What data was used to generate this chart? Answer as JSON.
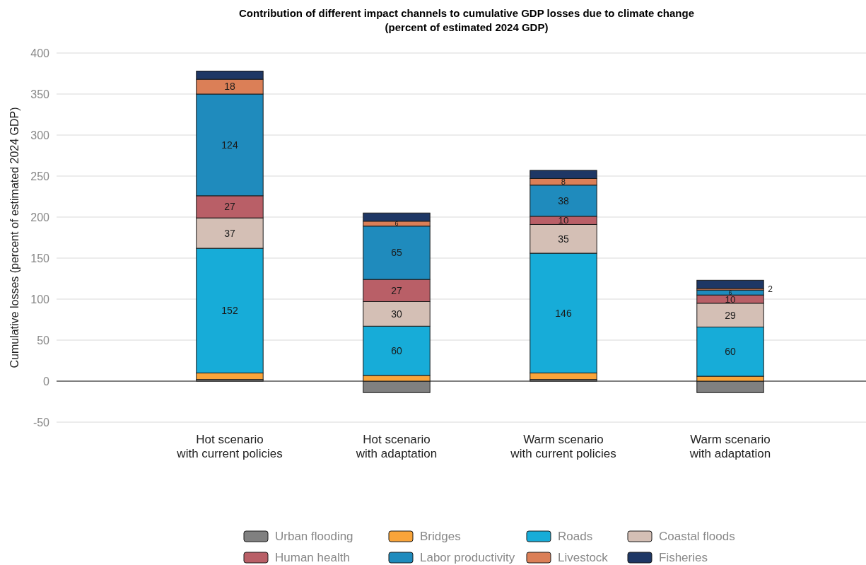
{
  "chart_data": {
    "type": "bar",
    "stacked": true,
    "title": "Contribution of different impact channels to cumulative GDP losses due to climate change",
    "subtitle": "(percent of estimated 2024 GDP)",
    "ylabel": "Cumulative losses (percent of estimated 2024 GDP)",
    "categories": [
      "Hot scenario\nwith current policies",
      "Hot scenario\nwith adaptation",
      "Warm scenario\nwith current policies",
      "Warm scenario\nwith adaptation"
    ],
    "series": [
      {
        "name": "Urban flooding",
        "color": "#808080",
        "values": [
          2,
          -14,
          2,
          -14
        ]
      },
      {
        "name": "Bridges",
        "color": "#f9a43a",
        "values": [
          8,
          7,
          8,
          6
        ]
      },
      {
        "name": "Roads",
        "color": "#17acd8",
        "values": [
          152,
          60,
          146,
          60
        ],
        "value_labels": [
          "152",
          "60",
          "146",
          "60"
        ]
      },
      {
        "name": "Coastal floods",
        "color": "#d4bfb5",
        "values": [
          37,
          30,
          35,
          29
        ],
        "value_labels": [
          "37",
          "30",
          "35",
          "29"
        ]
      },
      {
        "name": "Human health",
        "color": "#b95f67",
        "values": [
          27,
          27,
          10,
          10
        ],
        "value_labels": [
          "27",
          "27",
          "10",
          "10"
        ]
      },
      {
        "name": "Labor productivity",
        "color": "#1f8bbd",
        "values": [
          124,
          65,
          38,
          6
        ],
        "value_labels": [
          "124",
          "65",
          "38",
          "6"
        ]
      },
      {
        "name": "Livestock",
        "color": "#db7f57",
        "values": [
          18,
          6,
          8,
          2
        ],
        "value_labels": [
          "18",
          "6",
          "8",
          "2"
        ]
      },
      {
        "name": "Fisheries",
        "color": "#1e3765",
        "values": [
          10,
          10,
          10,
          10
        ]
      }
    ],
    "ylim": [
      -50,
      400
    ],
    "yticks": [
      -50,
      0,
      50,
      100,
      150,
      200,
      250,
      300,
      350,
      400
    ],
    "grid": "y",
    "legend": "bottom"
  }
}
